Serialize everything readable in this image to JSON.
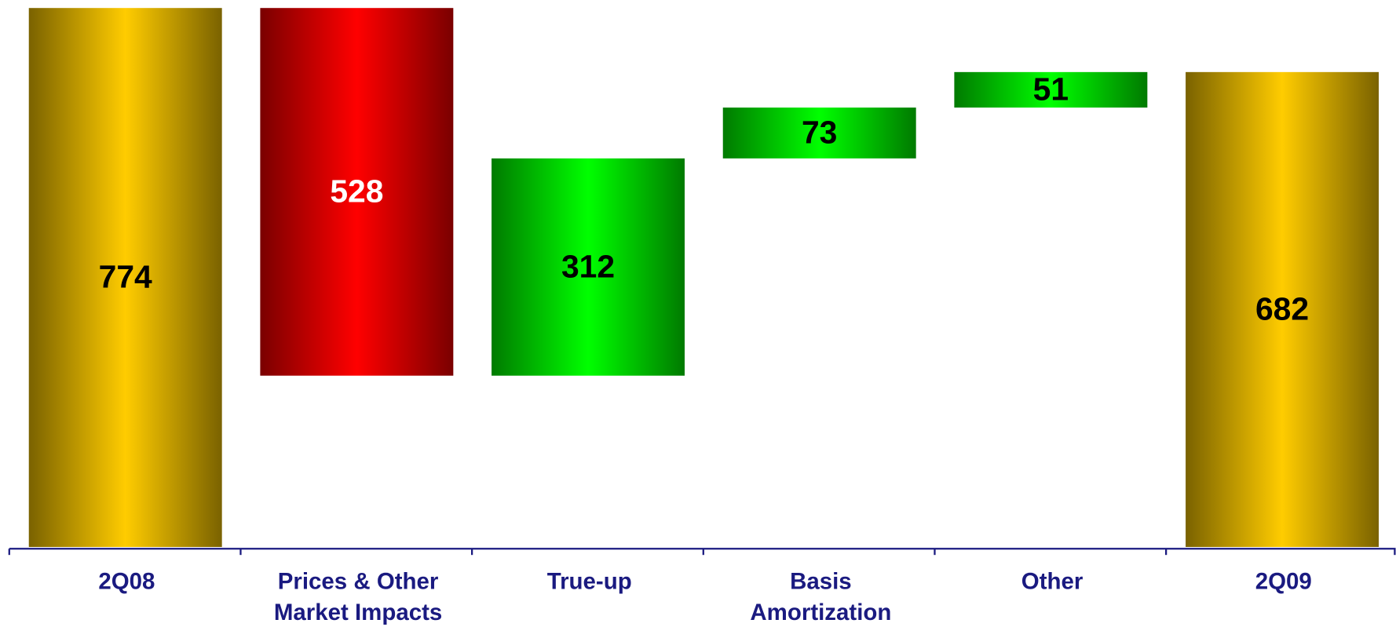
{
  "chart_data": {
    "type": "waterfall",
    "categories": [
      "2Q08",
      "Prices & Other\nMarket Impacts",
      "True-up",
      "Basis\nAmortization",
      "Other",
      "2Q09"
    ],
    "values": [
      774,
      528,
      312,
      73,
      51,
      682
    ],
    "measures": [
      "total",
      "decrease",
      "increase",
      "increase",
      "increase",
      "total"
    ],
    "colors": {
      "total": "#ffcc00",
      "decrease": "#ff0000",
      "increase": "#00ff00"
    },
    "label_colors": {
      "total": "#000000",
      "decrease": "#ffffff",
      "increase": "#000000"
    },
    "ylim": [
      0,
      774
    ]
  }
}
